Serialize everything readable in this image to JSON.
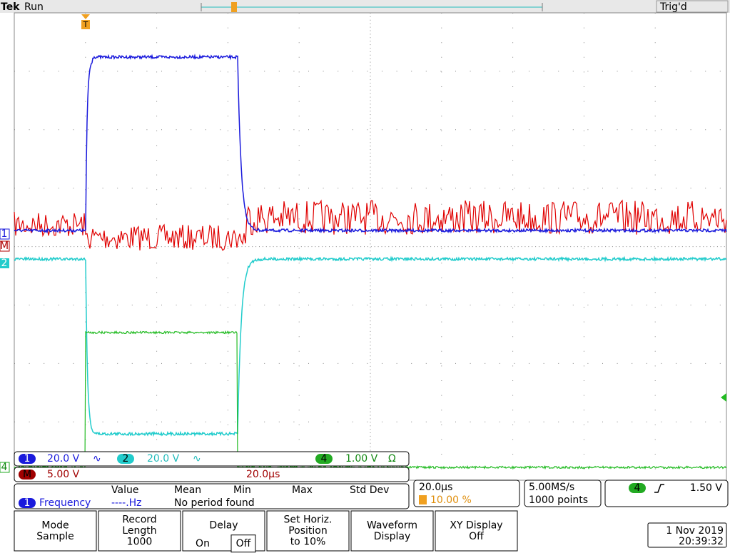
{
  "header": {
    "brand": "Tek",
    "status": "Run",
    "trigger_status": "Trig'd"
  },
  "markers": {
    "trigger": "T",
    "ch1": "1",
    "math": "M",
    "ch2": "2",
    "ch4": "4"
  },
  "channels": [
    {
      "id": "1",
      "scale": "20.0 V",
      "coupling": "∿"
    },
    {
      "id": "2",
      "scale": "20.0 V",
      "coupling": "∿"
    },
    {
      "id": "4",
      "scale": "1.00 V",
      "coupling": "Ω"
    }
  ],
  "math": {
    "id": "M",
    "scale": "5.00 V",
    "time": "20.0µs"
  },
  "measurement": {
    "columns": [
      "Value",
      "Mean",
      "Min",
      "Max",
      "Std Dev"
    ],
    "source": "1",
    "name": "Frequency",
    "value": "----.Hz",
    "note": "No period found"
  },
  "timebase": {
    "scale": "20.0µs",
    "position": "10.00 %"
  },
  "acquisition": {
    "rate": "5.00MS/s",
    "length": "1000 points"
  },
  "trigger": {
    "source": "4",
    "level": "1.50 V"
  },
  "buttons": [
    {
      "lines": [
        "Mode",
        "Sample"
      ]
    },
    {
      "lines": [
        "Record",
        "Length",
        "1000"
      ]
    },
    {
      "lines": [
        "Delay"
      ],
      "options": [
        "On",
        "Off"
      ]
    },
    {
      "lines": [
        "Set Horiz.",
        "Position",
        "to 10%"
      ]
    },
    {
      "lines": [
        "Waveform",
        "Display"
      ]
    },
    {
      "lines": [
        "XY Display",
        "Off"
      ]
    }
  ],
  "datetime": {
    "date": "1 Nov 2019",
    "time": "20:39:32"
  }
}
